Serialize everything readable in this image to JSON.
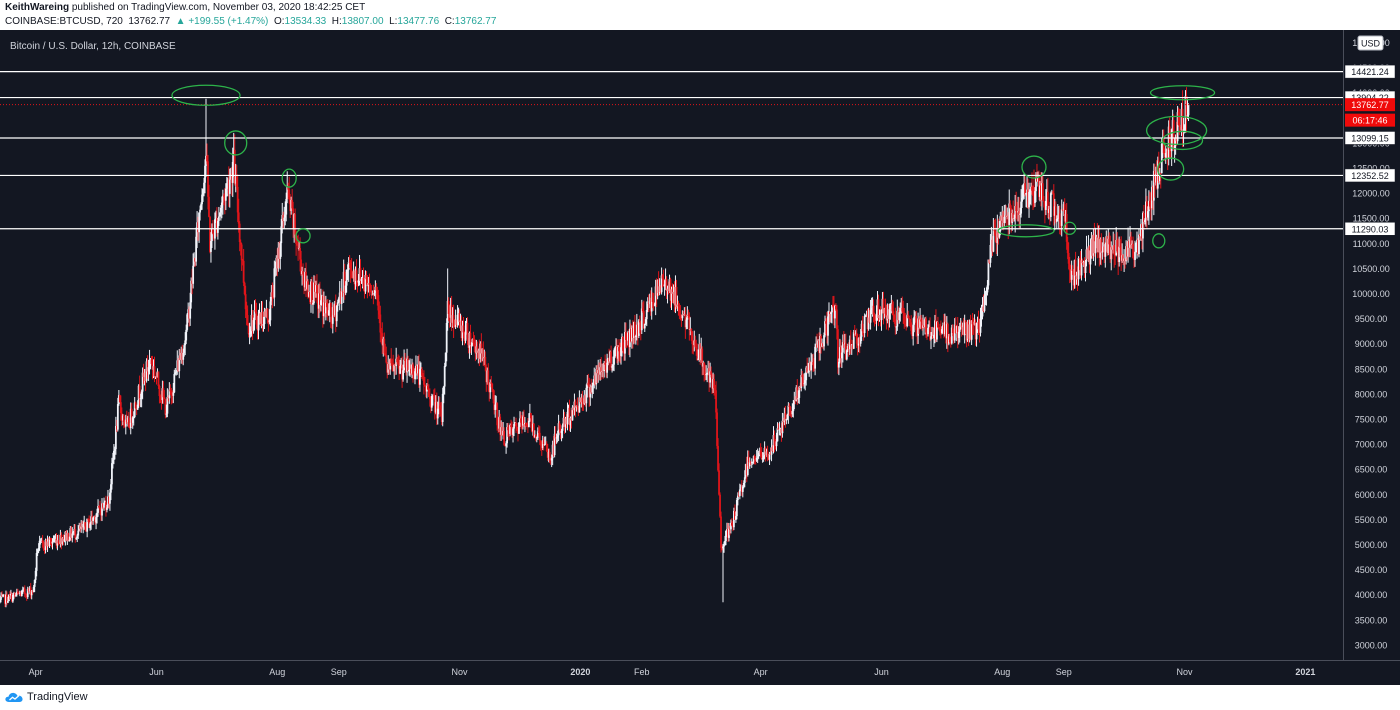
{
  "header": {
    "author": "KeithWareing",
    "published": "published on TradingView.com, November 03, 2020 18:42:25 CET",
    "symbol": "COINBASE:BTCUSD, 720",
    "last": "13762.77",
    "change": "▲ +199.55 (+1.47%)",
    "o_label": "O:",
    "o": "13534.33",
    "h_label": "H:",
    "h": "13807.00",
    "l_label": "L:",
    "l": "13477.76",
    "c_label": "C:",
    "c": "13762.77"
  },
  "footer": {
    "brand": "TradingView"
  },
  "chart_data": {
    "type": "candlestick",
    "title": "Bitcoin / U.S. Dollar, 12h, COINBASE",
    "currency": "USD",
    "ylim": [
      2700,
      15250
    ],
    "y_ticks": [
      3000,
      3500,
      4000,
      4500,
      5000,
      5500,
      6000,
      6500,
      7000,
      7500,
      8000,
      8500,
      9000,
      9500,
      10000,
      10500,
      11000,
      11500,
      12000,
      12500,
      13000,
      13500,
      14000,
      14500,
      15000
    ],
    "x_labels": [
      {
        "label": "Apr",
        "date": "2019-04-01"
      },
      {
        "label": "Jun",
        "date": "2019-06-01"
      },
      {
        "label": "Aug",
        "date": "2019-08-01"
      },
      {
        "label": "Sep",
        "date": "2019-09-01"
      },
      {
        "label": "Nov",
        "date": "2019-11-01"
      },
      {
        "label": "2020",
        "date": "2020-01-01"
      },
      {
        "label": "Feb",
        "date": "2020-02-01"
      },
      {
        "label": "Apr",
        "date": "2020-04-01"
      },
      {
        "label": "Jun",
        "date": "2020-06-01"
      },
      {
        "label": "Aug",
        "date": "2020-08-01"
      },
      {
        "label": "Sep",
        "date": "2020-09-01"
      },
      {
        "label": "Nov",
        "date": "2020-11-01"
      },
      {
        "label": "2021",
        "date": "2021-01-01"
      }
    ],
    "x_range": [
      "2019-03-14",
      "2021-01-20"
    ],
    "price_path": [
      [
        "2019-03-14",
        3880
      ],
      [
        "2019-03-31",
        4100
      ],
      [
        "2019-04-02",
        4950
      ],
      [
        "2019-04-25",
        5300
      ],
      [
        "2019-05-08",
        5900
      ],
      [
        "2019-05-13",
        7800
      ],
      [
        "2019-05-17",
        7300
      ],
      [
        "2019-05-29",
        8700
      ],
      [
        "2019-06-06",
        7700
      ],
      [
        "2019-06-16",
        9200
      ],
      [
        "2019-06-26",
        12800
      ],
      [
        "2019-06-28",
        11000
      ],
      [
        "2019-07-10",
        12600
      ],
      [
        "2019-07-17",
        9400
      ],
      [
        "2019-07-28",
        9600
      ],
      [
        "2019-08-06",
        12000
      ],
      [
        "2019-08-15",
        10200
      ],
      [
        "2019-08-29",
        9500
      ],
      [
        "2019-09-06",
        10500
      ],
      [
        "2019-09-20",
        10100
      ],
      [
        "2019-09-25",
        8500
      ],
      [
        "2019-10-10",
        8500
      ],
      [
        "2019-10-23",
        7500
      ],
      [
        "2019-10-26",
        9700
      ],
      [
        "2019-11-12",
        8800
      ],
      [
        "2019-11-23",
        7100
      ],
      [
        "2019-12-06",
        7500
      ],
      [
        "2019-12-17",
        6700
      ],
      [
        "2019-12-20",
        7200
      ],
      [
        "2020-01-14",
        8600
      ],
      [
        "2020-01-31",
        9400
      ],
      [
        "2020-02-13",
        10300
      ],
      [
        "2020-02-25",
        9300
      ],
      [
        "2020-03-09",
        8000
      ],
      [
        "2020-03-12",
        5000
      ],
      [
        "2020-03-17",
        5300
      ],
      [
        "2020-03-26",
        6700
      ],
      [
        "2020-04-05",
        6800
      ],
      [
        "2020-04-29",
        8800
      ],
      [
        "2020-05-09",
        9800
      ],
      [
        "2020-05-10",
        8700
      ],
      [
        "2020-05-31",
        9700
      ],
      [
        "2020-06-15",
        9400
      ],
      [
        "2020-07-01",
        9200
      ],
      [
        "2020-07-21",
        9300
      ],
      [
        "2020-07-27",
        11000
      ],
      [
        "2020-08-01",
        11500
      ],
      [
        "2020-08-17",
        12100
      ],
      [
        "2020-09-02",
        11500
      ],
      [
        "2020-09-04",
        10300
      ],
      [
        "2020-09-16",
        10900
      ],
      [
        "2020-10-08",
        10900
      ],
      [
        "2020-10-21",
        12800
      ],
      [
        "2020-10-29",
        13400
      ],
      [
        "2020-11-03",
        13762.77
      ]
    ],
    "extremes": [
      [
        "2019-06-26",
        13880
      ],
      [
        "2019-07-10",
        13200
      ],
      [
        "2019-08-06",
        12300
      ],
      [
        "2019-10-26",
        10500
      ],
      [
        "2020-02-13",
        10500
      ],
      [
        "2020-03-13",
        3850
      ],
      [
        "2020-08-17",
        12470
      ],
      [
        "2020-10-31",
        14050
      ]
    ],
    "horizontal_levels": [
      14421.24,
      13904.22,
      13099.15,
      12352.52,
      11290.03
    ],
    "last_price": 13762.77,
    "countdown": "06:17:46"
  }
}
